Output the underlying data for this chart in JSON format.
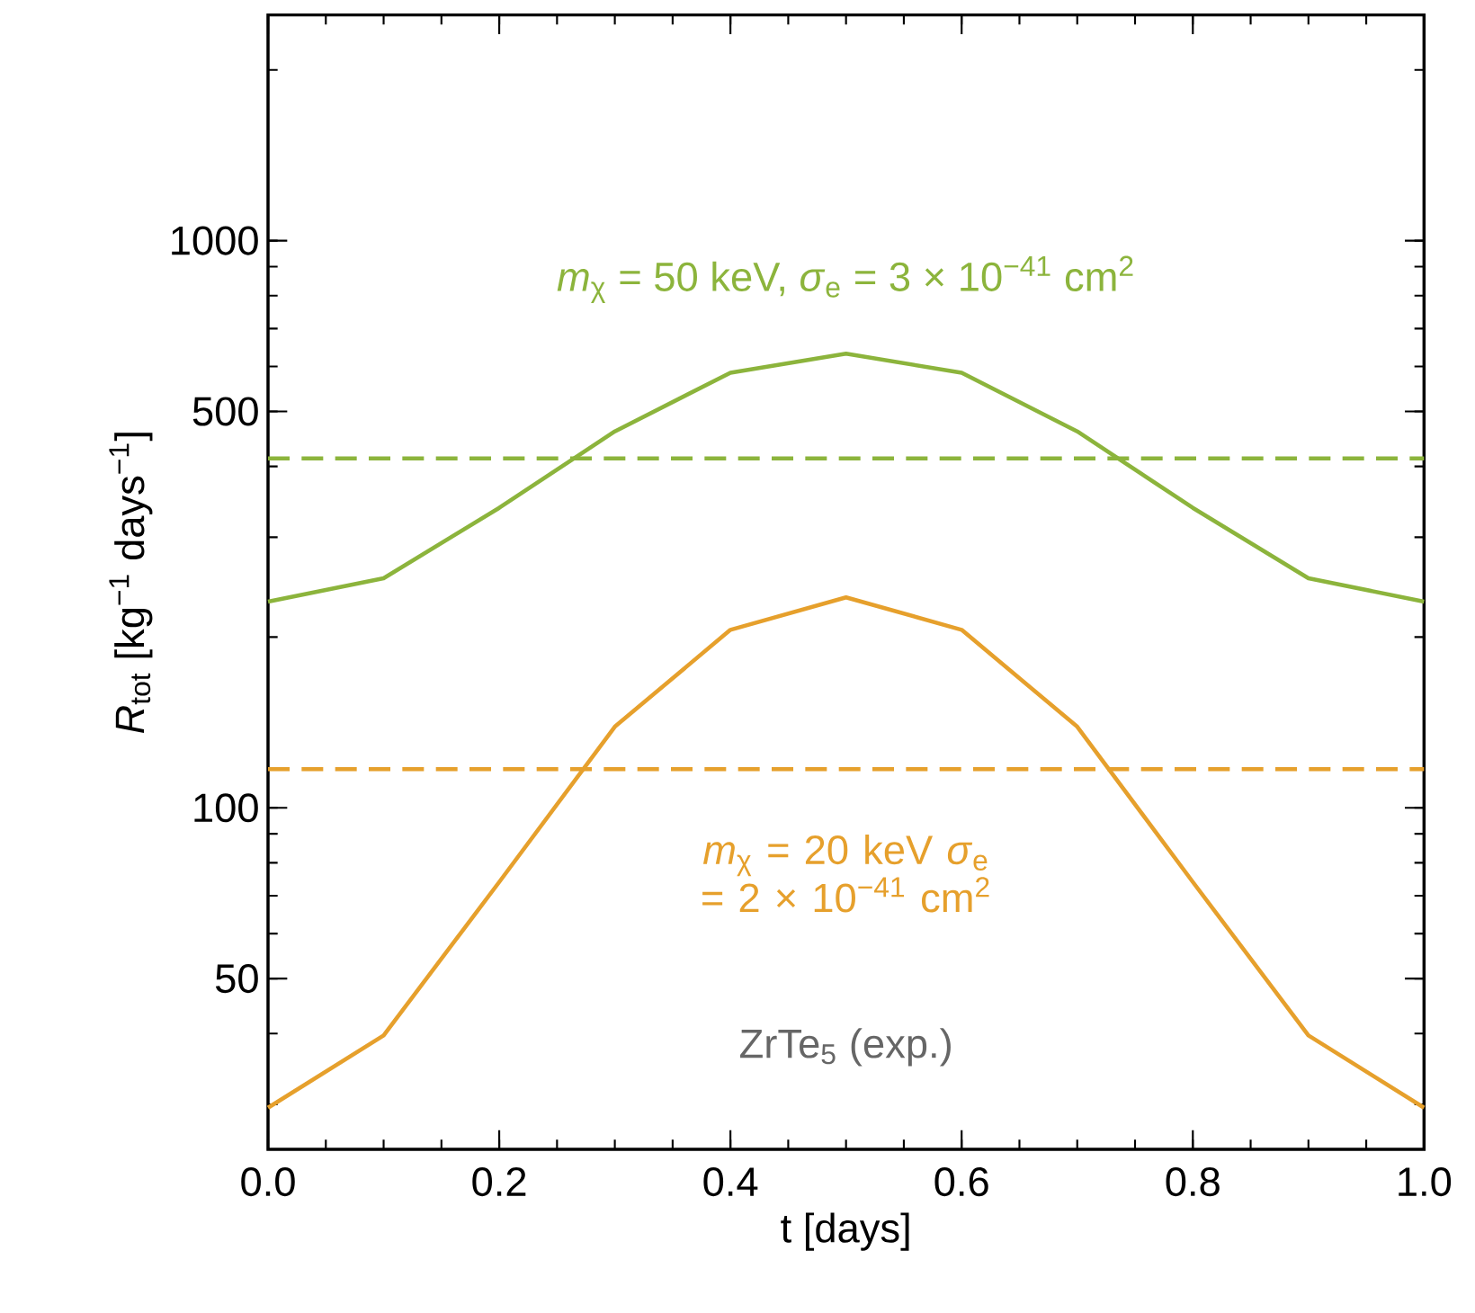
{
  "chart_data": {
    "type": "line",
    "x": [
      0,
      0.1,
      0.2,
      0.3,
      0.4,
      0.5,
      0.6,
      0.7,
      0.8,
      0.9,
      1.0
    ],
    "series": [
      {
        "name": "*m*$_{χ}$ = 50 keV, *σ*$_{e}$ = 3 × 10$^{−41}$ cm$^{2}$",
        "color": "#8cb43c",
        "values": [
          231,
          254,
          338,
          461,
          585,
          632,
          585,
          461,
          338,
          254,
          231
        ]
      },
      {
        "name": "*m*$_{χ}$ = 20 keV *σ*$_{e}$ = 2 × 10$^{−41}$ cm$^{2}$",
        "color": "#e6a02c",
        "values": [
          29.6,
          39.7,
          74,
          139,
          206,
          235,
          206,
          139,
          74,
          39.7,
          29.6
        ]
      }
    ],
    "ref_lines": [
      {
        "axis": "y",
        "value": 413,
        "color": "#8cb43c",
        "line_style": "dashed"
      },
      {
        "axis": "y",
        "value": 117,
        "color": "#e6a02c",
        "line_style": "dashed"
      }
    ],
    "xlabel": "t [days]",
    "ylabel": "*R*$_{tot}$ [kg$^{−1}$ days$^{−1}$]",
    "annotations": [
      "ZrTe$_{5}$ (exp.)"
    ],
    "log": "y",
    "xlim": [
      0,
      1.0
    ],
    "ylim": [
      25,
      2500
    ],
    "xticks": [
      {
        "value": 0,
        "label": "0.0"
      },
      {
        "value": 0.2,
        "label": "0.2"
      },
      {
        "value": 0.4,
        "label": "0.4"
      },
      {
        "value": 0.6,
        "label": "0.6"
      },
      {
        "value": 0.8,
        "label": "0.8"
      },
      {
        "value": 1.0,
        "label": "1.0"
      }
    ],
    "yticks": [
      50,
      100,
      500,
      1000
    ]
  }
}
